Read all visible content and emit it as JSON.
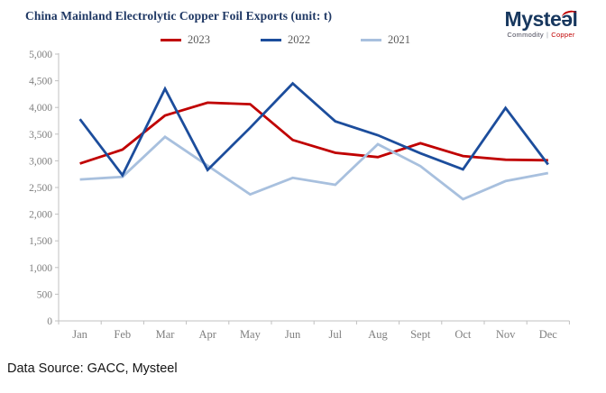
{
  "title": "China Mainland Electrolytic Copper Foil Exports (unit: t)",
  "logo": {
    "wordmark": "Mysteel",
    "tagline_left": "Commodity",
    "tagline_sep": "|",
    "tagline_right": "Copper"
  },
  "data_source": "Data Source: GACC, Mysteel",
  "chart_data": {
    "type": "line",
    "title": "China Mainland Electrolytic Copper Foil Exports (unit: t)",
    "xlabel": "",
    "ylabel": "",
    "ylim": [
      0,
      5000
    ],
    "ytick_step": 500,
    "ytick_labels": [
      "0",
      "500",
      "1,000",
      "1,500",
      "2,000",
      "2,500",
      "3,000",
      "3,500",
      "4,000",
      "4,500",
      "5,000"
    ],
    "grid": false,
    "legend_position": "top",
    "legend_entries": [
      "2023",
      "2022",
      "2021"
    ],
    "categories": [
      "Jan",
      "Feb",
      "Mar",
      "Apr",
      "May",
      "Jun",
      "Jul",
      "Aug",
      "Sept",
      "Oct",
      "Nov",
      "Dec"
    ],
    "series": [
      {
        "name": "2023",
        "color": "#C00000",
        "values": [
          2950,
          3210,
          3850,
          4090,
          4060,
          3390,
          3150,
          3070,
          3330,
          3090,
          3020,
          3010
        ]
      },
      {
        "name": "2022",
        "color": "#1C4D9C",
        "values": [
          3780,
          2730,
          4350,
          2830,
          3620,
          4450,
          3740,
          3480,
          3140,
          2840,
          3990,
          2930
        ]
      },
      {
        "name": "2021",
        "color": "#A8C0DE",
        "values": [
          2650,
          2700,
          3450,
          2910,
          2370,
          2680,
          2550,
          3310,
          2900,
          2280,
          2620,
          2770
        ]
      }
    ],
    "axis_color": "#C0C0C0",
    "tick_label_color": "#7F7F7F"
  }
}
